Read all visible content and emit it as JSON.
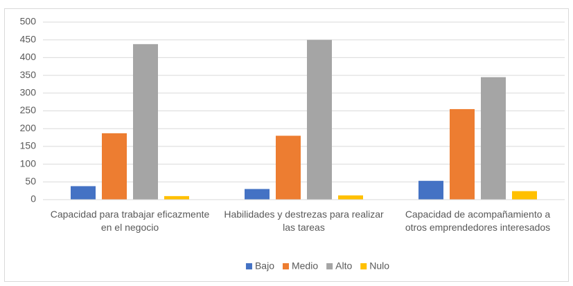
{
  "chart_data": {
    "type": "bar",
    "categories": [
      "Capacidad para trabajar eficazmente en el negocio",
      "Habilidades y destrezas para realizar las tareas",
      "Capacidad de acompañamiento a otros emprendedores interesados"
    ],
    "series": [
      {
        "name": "Bajo",
        "color": "#4472c4",
        "values": [
          38,
          30,
          53
        ]
      },
      {
        "name": "Medio",
        "color": "#ed7d31",
        "values": [
          187,
          180,
          255
        ]
      },
      {
        "name": "Alto",
        "color": "#a5a5a5",
        "values": [
          438,
          450,
          345
        ]
      },
      {
        "name": "Nulo",
        "color": "#ffc000",
        "values": [
          10,
          12,
          24
        ]
      }
    ],
    "ylim": [
      0,
      500
    ],
    "yticks": [
      0,
      50,
      100,
      150,
      200,
      250,
      300,
      350,
      400,
      450,
      500
    ],
    "grid": true,
    "legend": "bottom"
  }
}
